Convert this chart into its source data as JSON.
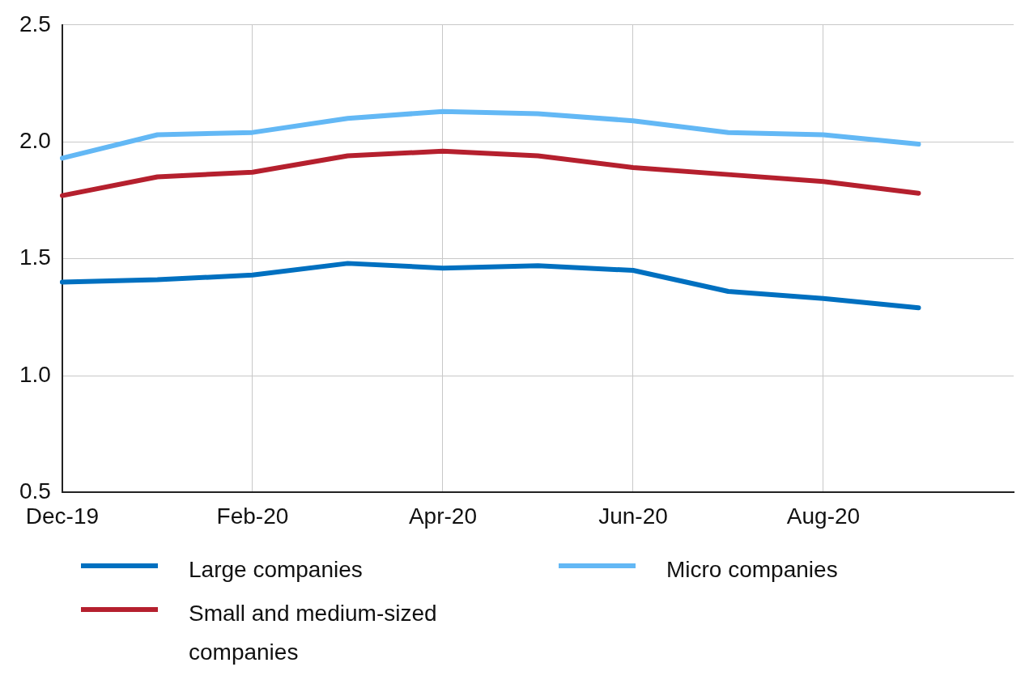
{
  "chart_data": {
    "type": "line",
    "categories": [
      "Dec-19",
      null,
      "Feb-20",
      null,
      "Apr-20",
      null,
      "Jun-20",
      null,
      "Aug-20",
      null,
      null
    ],
    "series": [
      {
        "name": "Large companies",
        "color": "#0070c0",
        "values": [
          1.4,
          1.41,
          1.43,
          1.48,
          1.46,
          1.47,
          1.45,
          1.36,
          1.33,
          1.29,
          null
        ]
      },
      {
        "name": "Small and medium-sized companies",
        "color": "#b5202e",
        "values": [
          1.77,
          1.85,
          1.87,
          1.94,
          1.96,
          1.94,
          1.89,
          1.86,
          1.83,
          1.78,
          null
        ]
      },
      {
        "name": "Micro companies",
        "color": "#63b8f5",
        "values": [
          1.93,
          2.03,
          2.04,
          2.1,
          2.13,
          2.12,
          2.09,
          2.04,
          2.03,
          1.99,
          null
        ]
      }
    ],
    "ylim": [
      0.5,
      2.5
    ],
    "yticks": [
      {
        "value": 0.5,
        "label": "0.5"
      },
      {
        "value": 1,
        "label": "1.0"
      },
      {
        "value": 1.5,
        "label": "1.5"
      },
      {
        "value": 2,
        "label": "2.0"
      },
      {
        "value": 2.5,
        "label": "2.5"
      }
    ],
    "grid": true,
    "legend": "bottom",
    "marker": "none",
    "line_style": "solid"
  }
}
